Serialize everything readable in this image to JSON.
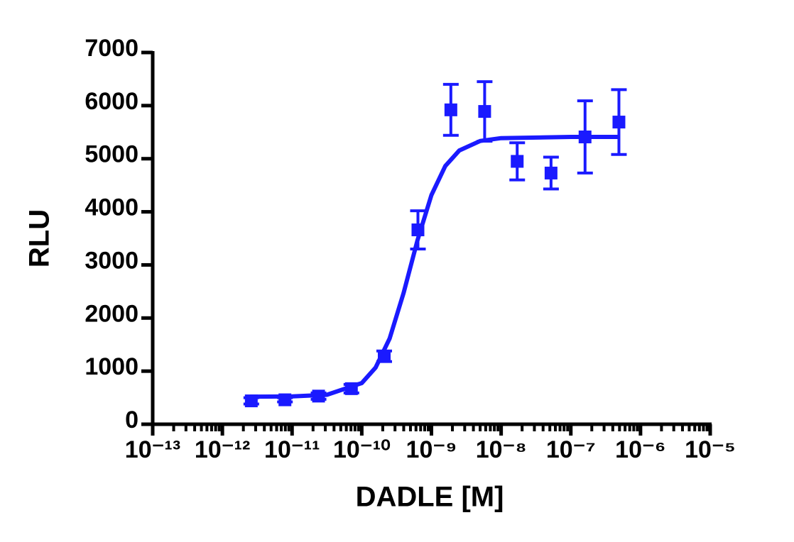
{
  "chart_data": {
    "type": "scatter",
    "xlabel": "DADLE [M]",
    "ylabel": "RLU",
    "xscale": "log",
    "xlim": [
      1e-13,
      1e-05
    ],
    "xticks": [
      {
        "value": 1e-13,
        "label": "10⁻¹³"
      },
      {
        "value": 1e-12,
        "label": "10⁻¹²"
      },
      {
        "value": 1e-11,
        "label": "10⁻¹¹"
      },
      {
        "value": 1e-10,
        "label": "10⁻¹⁰"
      },
      {
        "value": 1e-09,
        "label": "10⁻⁹"
      },
      {
        "value": 1e-08,
        "label": "10⁻⁸"
      },
      {
        "value": 1e-07,
        "label": "10⁻⁷"
      },
      {
        "value": 1e-06,
        "label": "10⁻⁶"
      },
      {
        "value": 1e-05,
        "label": "10⁻⁵"
      }
    ],
    "minor_ticks": true,
    "ylim": [
      0,
      7000
    ],
    "yticks": [
      0,
      1000,
      2000,
      3000,
      4000,
      5000,
      6000,
      7000
    ],
    "color": "#1a1aff",
    "series": [
      {
        "color": "#1a1aff",
        "x": [
          2.6e-12,
          7.9e-12,
          2.4e-11,
          7.1e-11,
          2.1e-10,
          6.4e-10,
          1.9e-09,
          5.8e-09,
          1.7e-08,
          5.2e-08,
          1.6e-07,
          4.9e-07
        ],
        "values": [
          440,
          460,
          530,
          670,
          1280,
          3660,
          5920,
          5890,
          4950,
          4730,
          5410,
          5690
        ],
        "errors": [
          60,
          40,
          60,
          80,
          100,
          360,
          480,
          560,
          350,
          300,
          680,
          610
        ]
      }
    ],
    "fit": {
      "color": "#1a1aff",
      "x": [
        2.5e-12,
        1e-11,
        3.16e-11,
        1e-10,
        1.58e-10,
        2.51e-10,
        3.98e-10,
        6.31e-10,
        1e-09,
        1.58e-09,
        2.51e-09,
        5.01e-09,
        1e-08,
        1e-07,
        5e-07
      ],
      "values": [
        520,
        524,
        554,
        775,
        1067,
        1614,
        2468,
        3466,
        4316,
        4863,
        5155,
        5334,
        5388,
        5410,
        5410
      ]
    }
  }
}
